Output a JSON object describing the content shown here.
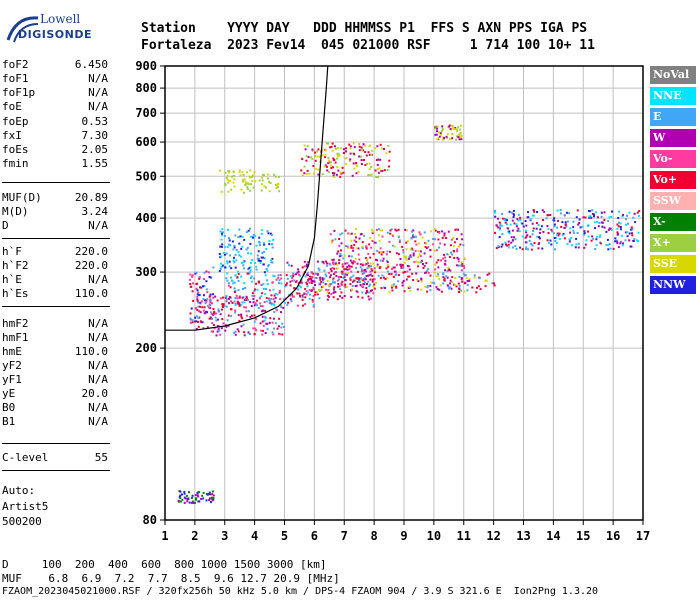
{
  "logo": {
    "line1": "Lowell",
    "line2": "DIGISONDE"
  },
  "header": {
    "labels": "Station    YYYY DAY   DDD HHMMSS P1  FFS S AXN PPS IGA PS",
    "values": "Fortaleza  2023 Fev14  045 021000 RSF     1 714 100 10+ 11"
  },
  "params": [
    {
      "k": "foF2",
      "v": "6.450"
    },
    {
      "k": "foF1",
      "v": "N/A"
    },
    {
      "k": "foF1p",
      "v": "N/A"
    },
    {
      "k": "foE",
      "v": "N/A"
    },
    {
      "k": "foEp",
      "v": "0.53"
    },
    {
      "k": "fxI",
      "v": "7.30"
    },
    {
      "k": "foEs",
      "v": "2.05"
    },
    {
      "k": "fmin",
      "v": "1.55"
    },
    {
      "k": "MUF(D)",
      "v": "20.89"
    },
    {
      "k": "M(D)",
      "v": "3.24"
    },
    {
      "k": "D",
      "v": "N/A"
    },
    {
      "k": "h`F",
      "v": "220.0"
    },
    {
      "k": "h`F2",
      "v": "220.0"
    },
    {
      "k": "h`E",
      "v": "N/A"
    },
    {
      "k": "h`Es",
      "v": "110.0"
    },
    {
      "k": "hmF2",
      "v": "N/A"
    },
    {
      "k": "hmF1",
      "v": "N/A"
    },
    {
      "k": "hmE",
      "v": "110.0"
    },
    {
      "k": "yF2",
      "v": "N/A"
    },
    {
      "k": "yF1",
      "v": "N/A"
    },
    {
      "k": "yE",
      "v": "20.0"
    },
    {
      "k": "B0",
      "v": "N/A"
    },
    {
      "k": "B1",
      "v": "N/A"
    },
    {
      "k": "C-level",
      "v": "55"
    }
  ],
  "auto": {
    "line1": "Auto:",
    "line2": "Artist5",
    "line3": "500200"
  },
  "legend": [
    {
      "label": "NoVal",
      "color": "#808080"
    },
    {
      "label": "NNE",
      "color": "#00e5ff"
    },
    {
      "label": "E",
      "color": "#3fa7f5"
    },
    {
      "label": "W",
      "color": "#b000b0"
    },
    {
      "label": "Vo-",
      "color": "#ff3aa0"
    },
    {
      "label": "Vo+",
      "color": "#f00030"
    },
    {
      "label": "SSW",
      "color": "#ffb0b0"
    },
    {
      "label": "X-",
      "color": "#008000"
    },
    {
      "label": "X+",
      "color": "#9cd040"
    },
    {
      "label": "SSE",
      "color": "#d8d800"
    },
    {
      "label": "NNW",
      "color": "#2020e0"
    }
  ],
  "bottom": {
    "d_row": "D     100  200  400  600  800 1000 1500 3000 [km]",
    "muf_row": "MUF    6.8  6.9  7.2  7.7  8.5  9.6 12.7 20.9 [MHz]"
  },
  "footer": "FZAOM_2023045021000.RSF / 320fx256h 50 kHz 5.0 km / DPS-4 FZAOM 904 / 3.9 S 321.6 E  Ion2Png 1.3.20",
  "chart_data": {
    "type": "scatter",
    "x_ticks": [
      "1",
      "2",
      "3",
      "4",
      "5",
      "6",
      "7",
      "8",
      "9",
      "10",
      "11",
      "12",
      "13",
      "14",
      "15",
      "16",
      "17"
    ],
    "y_ticks": [
      "80",
      "200",
      "300",
      "400",
      "500",
      "600",
      "700",
      "800",
      "900"
    ],
    "xlim": [
      1,
      17
    ],
    "ylim": [
      80,
      900
    ],
    "y_scale": "log",
    "grid": true,
    "legend_position": "right",
    "trace_curve": {
      "x": [
        1.0,
        2.0,
        3.0,
        4.0,
        4.8,
        5.4,
        5.8,
        6.0,
        6.1,
        6.2,
        6.3,
        6.4,
        6.45
      ],
      "y": [
        220,
        220,
        225,
        235,
        250,
        275,
        310,
        360,
        430,
        530,
        650,
        800,
        900
      ]
    },
    "echo_regions": [
      {
        "x": [
          1.8,
          2.6
        ],
        "y": [
          230,
          310
        ],
        "colors": [
          "#f00030",
          "#ff3aa0",
          "#3fa7f5",
          "#2020e0"
        ]
      },
      {
        "x": [
          2.0,
          5.0
        ],
        "y": [
          215,
          265
        ],
        "colors": [
          "#f00030",
          "#ff3aa0",
          "#b000b0",
          "#3fa7f5"
        ]
      },
      {
        "x": [
          3.0,
          6.0
        ],
        "y": [
          250,
          300
        ],
        "colors": [
          "#3fa7f5",
          "#00e5ff",
          "#f00030",
          "#ff3aa0"
        ]
      },
      {
        "x": [
          2.8,
          4.6
        ],
        "y": [
          300,
          380
        ],
        "colors": [
          "#2020e0",
          "#3fa7f5",
          "#00e5ff"
        ]
      },
      {
        "x": [
          5.0,
          8.0
        ],
        "y": [
          260,
          320
        ],
        "colors": [
          "#f00030",
          "#3fa7f5",
          "#ff3aa0",
          "#b000b0"
        ]
      },
      {
        "x": [
          6.0,
          12.0
        ],
        "y": [
          270,
          300
        ],
        "colors": [
          "#3fa7f5",
          "#f00030",
          "#d8d800",
          "#b000b0"
        ]
      },
      {
        "x": [
          6.5,
          11.0
        ],
        "y": [
          300,
          380
        ],
        "colors": [
          "#f00030",
          "#3fa7f5",
          "#b000b0",
          "#d8d800",
          "#ff3aa0"
        ]
      },
      {
        "x": [
          2.8,
          4.8
        ],
        "y": [
          460,
          520
        ],
        "colors": [
          "#d8d800",
          "#9cd040"
        ]
      },
      {
        "x": [
          5.5,
          8.5
        ],
        "y": [
          500,
          600
        ],
        "colors": [
          "#d8d800",
          "#9cd040",
          "#b000b0",
          "#f00030"
        ]
      },
      {
        "x": [
          10.0,
          10.9
        ],
        "y": [
          610,
          660
        ],
        "colors": [
          "#d8d800",
          "#9cd040",
          "#b000b0"
        ]
      },
      {
        "x": [
          12.0,
          16.9
        ],
        "y": [
          340,
          420
        ],
        "colors": [
          "#3fa7f5",
          "#b000b0",
          "#2020e0",
          "#f00030",
          "#00e5ff"
        ]
      },
      {
        "x": [
          1.4,
          2.6
        ],
        "y": [
          88,
          94
        ],
        "colors": [
          "#008000",
          "#b000b0",
          "#2020e0"
        ]
      }
    ]
  }
}
